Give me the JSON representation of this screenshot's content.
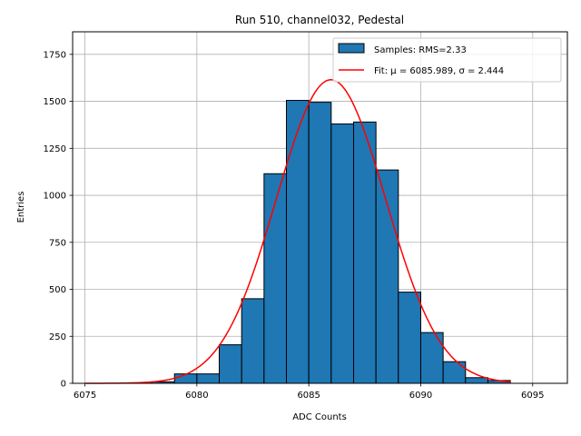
{
  "chart_data": {
    "type": "bar",
    "title": "Run 510, channel032, Pedestal",
    "xlabel": "ADC Counts",
    "ylabel": "Entries",
    "xlim": [
      6074.45,
      6096.55
    ],
    "ylim": [
      0,
      1870
    ],
    "xticks": [
      6075,
      6080,
      6085,
      6090,
      6095
    ],
    "yticks": [
      0,
      250,
      500,
      750,
      1000,
      1250,
      1500,
      1750
    ],
    "grid": true,
    "legend_position": "top-right",
    "histogram": {
      "name": "Samples: RMS=2.33",
      "color": "#1f77b4",
      "bin_edges": [
        6075,
        6076,
        6077,
        6078,
        6079,
        6080,
        6081,
        6082,
        6083,
        6084,
        6085,
        6086,
        6087,
        6088,
        6089,
        6090,
        6091,
        6092,
        6093,
        6094
      ],
      "values": [
        0,
        0,
        2,
        8,
        50,
        50,
        205,
        450,
        1115,
        1505,
        1495,
        1380,
        1390,
        1135,
        485,
        270,
        115,
        30,
        15
      ]
    },
    "fit": {
      "name": "Fit: μ = 6085.989, σ = 2.444",
      "color": "#ff0000",
      "mu": 6085.989,
      "sigma": 2.444,
      "amplitude": 1615,
      "x_range": [
        6075,
        6094
      ]
    }
  }
}
